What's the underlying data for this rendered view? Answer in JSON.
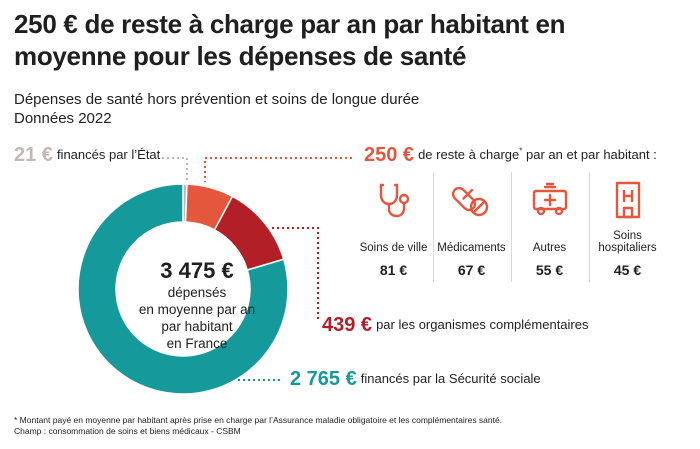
{
  "title": "250 € de reste à charge par an par habitant en moyenne pour les dépenses de santé",
  "subtitle_line1": "Dépenses de santé hors prévention et soins de longue durée",
  "subtitle_line2": "Données 2022",
  "center": {
    "total": "3 475 €",
    "line1": "dépensés",
    "line2": "en moyenne par an",
    "line3": "par habitant",
    "line4": "en France"
  },
  "callouts": {
    "etat": {
      "amount": "21 €",
      "text": "financés par l’État"
    },
    "rac": {
      "amount": "250 €",
      "text_before": "de reste à charge",
      "star": "*",
      "text_after": " par an et par habitant :"
    },
    "ocam": {
      "amount": "439 €",
      "text": "par les organismes complémentaires"
    },
    "secu": {
      "amount": "2 765 €",
      "text": "financés par la Sécurité sociale"
    }
  },
  "categories": [
    {
      "label": "Soins de ville",
      "value": "81 €",
      "icon": "stethoscope-icon"
    },
    {
      "label": "Médicaments",
      "value": "67 €",
      "icon": "pills-icon"
    },
    {
      "label": "Autres",
      "value": "55 €",
      "icon": "ambulance-icon"
    },
    {
      "label": "Soins hospitaliers",
      "value": "45 €",
      "icon": "hospital-icon"
    }
  ],
  "footnote_line1": "* Montant payé en moyenne par habitant après prise en charge par l’Assurance maladie obligatoire et les complémentaires santé.",
  "footnote_line2": "Champ : consommation de soins et biens médicaux - CSBM",
  "colors": {
    "etat": "#c2b8b5",
    "reste_a_charge": "#e4573d",
    "complementaires": "#b31f27",
    "securite_sociale": "#16999b"
  },
  "chart_data": {
    "type": "donut",
    "title": "250 € de reste à charge par an par habitant en moyenne pour les dépenses de santé",
    "unit": "€",
    "total": 3475,
    "slices": [
      {
        "name": "financés par l’État",
        "value": 21,
        "color": "#c2b8b5"
      },
      {
        "name": "reste à charge",
        "value": 250,
        "color": "#e4573d"
      },
      {
        "name": "organismes complémentaires",
        "value": 439,
        "color": "#b31f27"
      },
      {
        "name": "Sécurité sociale",
        "value": 2765,
        "color": "#16999b"
      }
    ],
    "reste_a_charge_breakdown": [
      {
        "category": "Soins de ville",
        "value": 81
      },
      {
        "category": "Médicaments",
        "value": 67
      },
      {
        "category": "Autres",
        "value": 55
      },
      {
        "category": "Soins hospitaliers",
        "value": 45
      }
    ]
  }
}
